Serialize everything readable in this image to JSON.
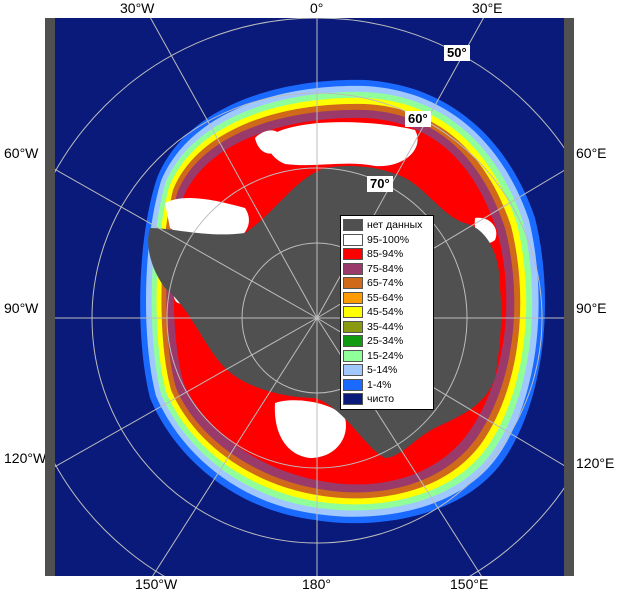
{
  "map": {
    "colors": {
      "ocean": "#0a1a7a",
      "land": "#505050",
      "grid": "#bcbcbc",
      "ice_high": "#ff0000",
      "ice_full": "#ffffff",
      "ice_mid": "#9a3a6a",
      "ice_edge": "#e06a00"
    },
    "top_labels": [
      "30°W",
      "0°",
      "30°E"
    ],
    "bottom_labels": [
      "150°W",
      "180°",
      "150°E"
    ],
    "left_labels": [
      "60°W",
      "90°W",
      "120°W"
    ],
    "right_labels": [
      "60°E",
      "90°E",
      "120°E"
    ],
    "lat_labels": [
      "50°",
      "60°",
      "70°"
    ]
  },
  "legend": {
    "items": [
      {
        "label": "нет данных",
        "color": "#505050"
      },
      {
        "label": "95-100%",
        "color": "#ffffff"
      },
      {
        "label": "85-94%",
        "color": "#ff0000"
      },
      {
        "label": "75-84%",
        "color": "#9a3a6a"
      },
      {
        "label": "65-74%",
        "color": "#d06a1a"
      },
      {
        "label": "55-64%",
        "color": "#ff9a00"
      },
      {
        "label": "45-54%",
        "color": "#ffff00"
      },
      {
        "label": "35-44%",
        "color": "#8a9a10"
      },
      {
        "label": "25-34%",
        "color": "#109a10"
      },
      {
        "label": "15-24%",
        "color": "#90ff9a"
      },
      {
        "label": "5-14%",
        "color": "#a0c8ff"
      },
      {
        "label": "1-4%",
        "color": "#1a6aff"
      },
      {
        "label": "чисто",
        "color": "#0a1a7a"
      }
    ]
  }
}
